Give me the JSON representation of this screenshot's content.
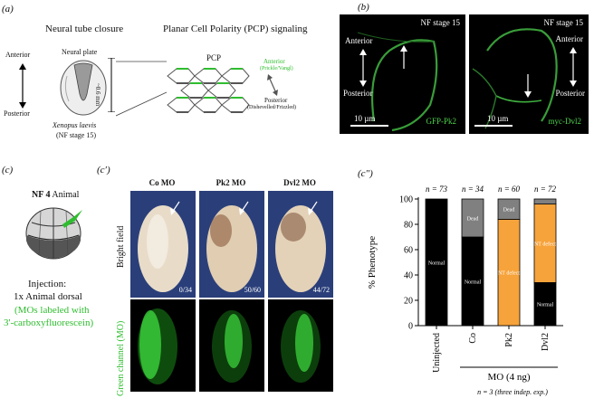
{
  "panel_a": {
    "letter": "(a)",
    "title_left": "Neural tube closure",
    "title_right": "Planar Cell Polarity (PCP) signaling",
    "anterior": "Anterior",
    "posterior": "Posterior",
    "neural_plate": "Neural plate",
    "species": "Xenopus laevis",
    "stage": "(NF stage 15)",
    "scale": "~0.6 mm",
    "pcp_label": "PCP",
    "pcp_anterior": "Anterior",
    "pcp_anterior_sub": "(Prickle/Vangl)",
    "pcp_posterior": "Posterior",
    "pcp_posterior_sub": "(Dishevelled/Frizzled)"
  },
  "panel_b": {
    "letter": "(b)",
    "left": {
      "stage": "NF stage 15",
      "anterior": "Anterior",
      "posterior": "Posterior",
      "scale": "10 µm",
      "marker": "GFP-Pk2"
    },
    "right": {
      "stage": "NF stage 15",
      "anterior": "Anterior",
      "posterior": "Posterior",
      "scale": "10 µm",
      "marker": "myc-Dvl2"
    }
  },
  "panel_c": {
    "letter": "(c)",
    "stage": "NF 4",
    "stage_suffix": "Animal",
    "injection_title": "Injection:",
    "injection_line1": "1x Animal dorsal",
    "injection_line2": "(MOs labeled with",
    "injection_line3": "3'-carboxyfluorescein)"
  },
  "panel_c1": {
    "letter": "(c′)",
    "columns": [
      "Co MO",
      "Pk2 MO",
      "Dvl2 MO"
    ],
    "counts": [
      "0/34",
      "50/60",
      "44/72"
    ],
    "row1_label": "Bright field",
    "row2_label": "Green channel (MO)"
  },
  "panel_c2": {
    "letter": "(c″)",
    "footnote": "n = 3 (three indep. exp.)",
    "mo_label": "MO (4 ng)",
    "ylabel": "% Phenotype"
  },
  "chart_data": {
    "type": "bar",
    "stacked": true,
    "categories": [
      "Uninjected",
      "Co",
      "Pk2",
      "Dvl2"
    ],
    "n_labels": [
      "n = 73",
      "n = 34",
      "n = 60",
      "n = 72"
    ],
    "ylabel": "% Phenotype",
    "ylim": [
      0,
      100
    ],
    "yticks": [
      0,
      20,
      40,
      60,
      80,
      100
    ],
    "series": [
      {
        "name": "Normal",
        "color": "#000000",
        "values": [
          100,
          70,
          0,
          34
        ]
      },
      {
        "name": "NT defect",
        "color": "#f7a33b",
        "values": [
          0,
          0,
          84,
          62
        ]
      },
      {
        "name": "Dead",
        "color": "#808080",
        "values": [
          0,
          30,
          16,
          4
        ]
      }
    ]
  }
}
